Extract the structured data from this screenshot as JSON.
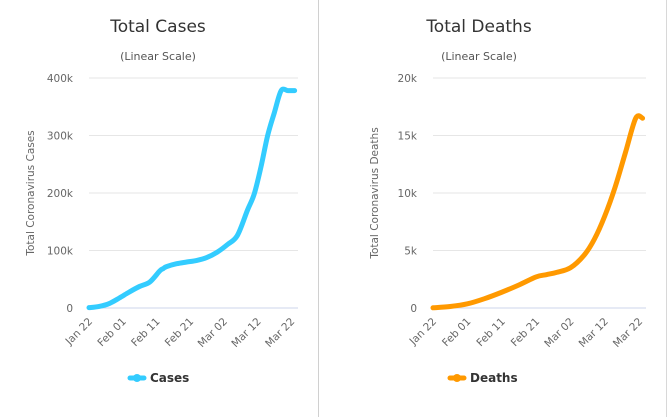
{
  "chart_data": [
    {
      "type": "line",
      "title": "Total Cases",
      "subtitle": "(Linear Scale)",
      "xlabel": "",
      "ylabel": "Total Coronavirus Cases",
      "ylim": [
        0,
        400000
      ],
      "yticks": [
        0,
        100000,
        200000,
        300000,
        400000
      ],
      "ytick_labels": [
        "0",
        "100k",
        "200k",
        "300k",
        "400k"
      ],
      "xtick_labels": [
        "Jan 22",
        "Feb 01",
        "Feb 11",
        "Feb 21",
        "Mar 02",
        "Mar 12",
        "Mar 22"
      ],
      "grid": true,
      "legend": "bottom-center",
      "series": [
        {
          "name": "Cases",
          "color": "#33ccff",
          "x_days_from_jan22": [
            0,
            3,
            6,
            9,
            12,
            15,
            18,
            21,
            22,
            23,
            26,
            29,
            32,
            35,
            38,
            41,
            44,
            47,
            49,
            51,
            53,
            55,
            57,
            59,
            61
          ],
          "values": [
            580,
            2800,
            7800,
            17400,
            28000,
            37500,
            45000,
            64500,
            68500,
            72000,
            77000,
            80000,
            82800,
            88000,
            97000,
            110000,
            126000,
            170000,
            198000,
            245000,
            300000,
            340000,
            378000,
            378000,
            378000
          ]
        }
      ]
    },
    {
      "type": "line",
      "title": "Total Deaths",
      "subtitle": "(Linear Scale)",
      "xlabel": "",
      "ylabel": "Total Coronavirus Deaths",
      "ylim": [
        0,
        20000
      ],
      "yticks": [
        0,
        5000,
        10000,
        15000,
        20000
      ],
      "ytick_labels": [
        "0",
        "5k",
        "10k",
        "15k",
        "20k"
      ],
      "xtick_labels": [
        "Jan 22",
        "Feb 01",
        "Feb 11",
        "Feb 21",
        "Mar 02",
        "Mar 12",
        "Mar 22"
      ],
      "grid": true,
      "legend": "bottom-center",
      "series": [
        {
          "name": "Deaths",
          "color": "#ff9900",
          "x_days_from_jan22": [
            0,
            5,
            10,
            15,
            20,
            25,
            30,
            33,
            36,
            40,
            44,
            47,
            50,
            53,
            56,
            59,
            61
          ],
          "values": [
            17,
            130,
            360,
            810,
            1370,
            2000,
            2700,
            2900,
            3100,
            3500,
            4600,
            6000,
            8000,
            10500,
            13500,
            16500,
            16500
          ]
        }
      ]
    }
  ]
}
